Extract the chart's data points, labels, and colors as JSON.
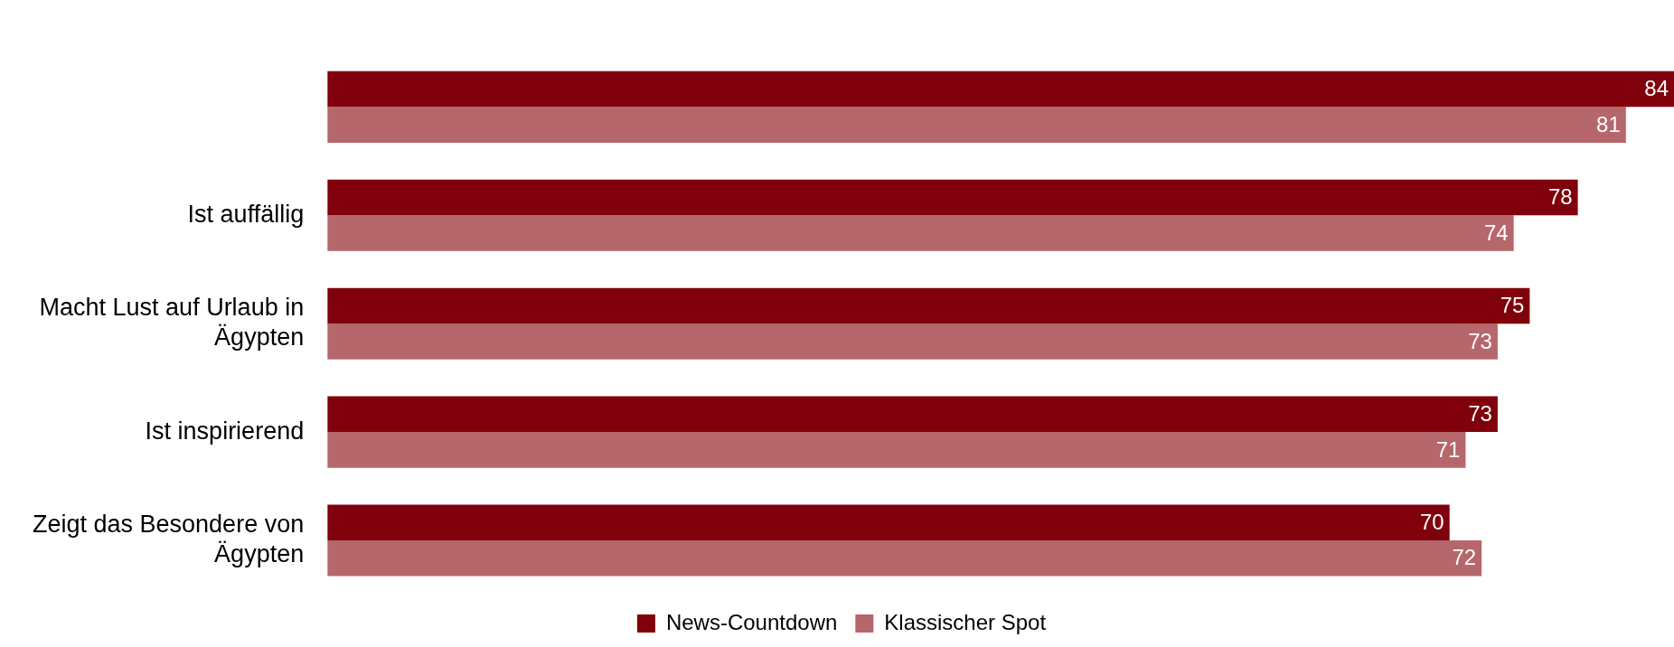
{
  "chart_data": {
    "type": "bar",
    "orientation": "horizontal",
    "categories": [
      null,
      "Ist auffällig",
      "Macht Lust auf Urlaub in Ägypten",
      "Ist inspirierend",
      "Zeigt das Besondere von Ägypten"
    ],
    "series": [
      {
        "name": "News-Countdown",
        "color": "#80000b",
        "values": [
          84,
          78,
          75,
          73,
          70
        ]
      },
      {
        "name": "Klassischer Spot",
        "color": "#b5676b",
        "values": [
          81,
          74,
          73,
          71,
          72
        ]
      }
    ],
    "xlim": [
      0,
      84
    ],
    "data_labels": true,
    "legend": "bottom",
    "tick_labels": "y"
  }
}
